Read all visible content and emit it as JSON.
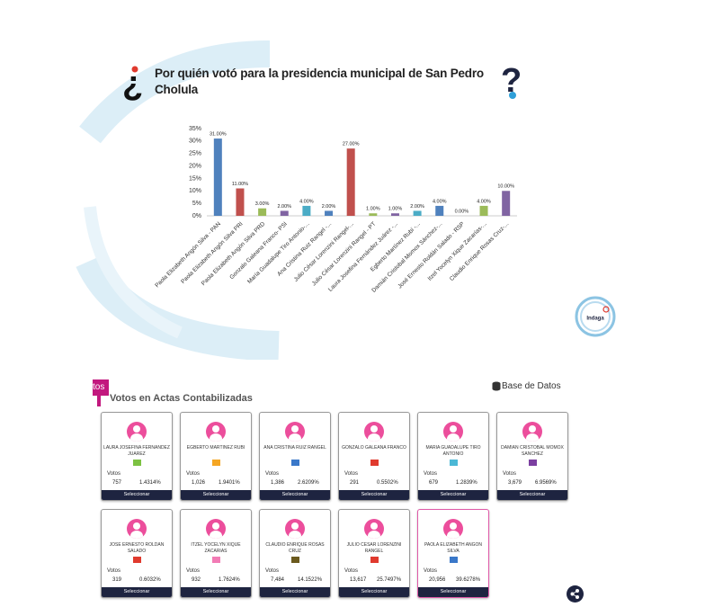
{
  "chart_data": {
    "type": "bar",
    "title_marks": [
      "¿",
      "?"
    ],
    "title": "Por quién votó para la presidencia municipal de San Pedro Cholula",
    "categories": [
      "Paola Elizabeth Angón Silva - PAN",
      "Paola Elizabeth Angón Silva PRI",
      "Paola Elizabeth Angón Silva PRD",
      "Gonzalo Galeana Franco- PSI",
      "María Guadalupe Tiro Antonio-...",
      "Ana Cristina Ruiz Rangel -...",
      "Julio César Lorenzini Rangel-...",
      "Julio César Lorenzini Rangel - PT",
      "Laura Josefina Fernández Juárez -...",
      "Egberto Martínez Rubí -...",
      "Damián Cristobal Momox Sánchez-...",
      "José Ernesto Roldán Salado - RSP",
      "Itzel Yocelyn Xique Zacarías-...",
      "Claudio Enrique Rosas Cruz-..."
    ],
    "values": [
      31,
      11,
      3,
      2,
      4,
      2,
      27,
      1,
      1,
      2,
      4,
      0,
      4,
      10
    ],
    "value_labels": [
      "31.00%",
      "11.00%",
      "3.00%",
      "2.00%",
      "4.00%",
      "2.00%",
      "27.00%",
      "1.00%",
      "1.00%",
      "2.00%",
      "4.00%",
      "0.00%",
      "4.00%",
      "10.00%"
    ],
    "colors": [
      "#4f81bd",
      "#c0504d",
      "#9bbb59",
      "#8064a2",
      "#4bacc6",
      "#4f81bd",
      "#c0504d",
      "#9bbb59",
      "#8064a2",
      "#4bacc6",
      "#4f81bd",
      "#c0504d",
      "#9bbb59",
      "#8064a2"
    ],
    "ylim": [
      0,
      35
    ],
    "yticks": [
      {
        "value": 0,
        "label": "0%"
      },
      {
        "value": 5,
        "label": "5%"
      },
      {
        "value": 10,
        "label": "10%"
      },
      {
        "value": 15,
        "label": "15%"
      },
      {
        "value": 20,
        "label": "20%"
      },
      {
        "value": 25,
        "label": "25%"
      },
      {
        "value": 30,
        "label": "30%"
      },
      {
        "value": 35,
        "label": "35%"
      }
    ],
    "grid": false,
    "logo": "Indaga"
  },
  "panel": {
    "tab": "tos",
    "heading": "Votos en Actas Contabilizadas",
    "database": "Base de Datos",
    "votes_label": "Votos",
    "button": "Seleccionar",
    "cards": [
      {
        "name": "LAURA JOSEFINA FERNANDEZ JUAREZ",
        "votes": "757",
        "percent": "1.4314%"
      },
      {
        "name": "EGBERTO MARTINEZ RUBI",
        "votes": "1,026",
        "percent": "1.9401%"
      },
      {
        "name": "ANA CRISTINA RUIZ RANGEL",
        "votes": "1,386",
        "percent": "2.6209%"
      },
      {
        "name": "GONZALO GALEANA FRANCO",
        "votes": "291",
        "percent": "0.5502%"
      },
      {
        "name": "MARIA GUADALUPE TIRO ANTONIO",
        "votes": "679",
        "percent": "1.2839%"
      },
      {
        "name": "DAMIAN CRISTOBAL MOMOX SANCHEZ",
        "votes": "3,679",
        "percent": "6.9569%"
      },
      {
        "name": "JOSE ERNESTO ROLDAN SALADO",
        "votes": "319",
        "percent": "0.6032%"
      },
      {
        "name": "ITZEL YOCELYN XIQUE ZACARIAS",
        "votes": "932",
        "percent": "1.7624%"
      },
      {
        "name": "CLAUDIO ENRIQUE ROSAS CRUZ",
        "votes": "7,484",
        "percent": "14.1522%"
      },
      {
        "name": "JULIO CESAR LORENZINI RANGEL",
        "votes": "13,617",
        "percent": "25.7497%"
      },
      {
        "name": "PAOLA ELIZABETH ANGON SILVA",
        "votes": "20,956",
        "percent": "39.6278%"
      }
    ]
  }
}
